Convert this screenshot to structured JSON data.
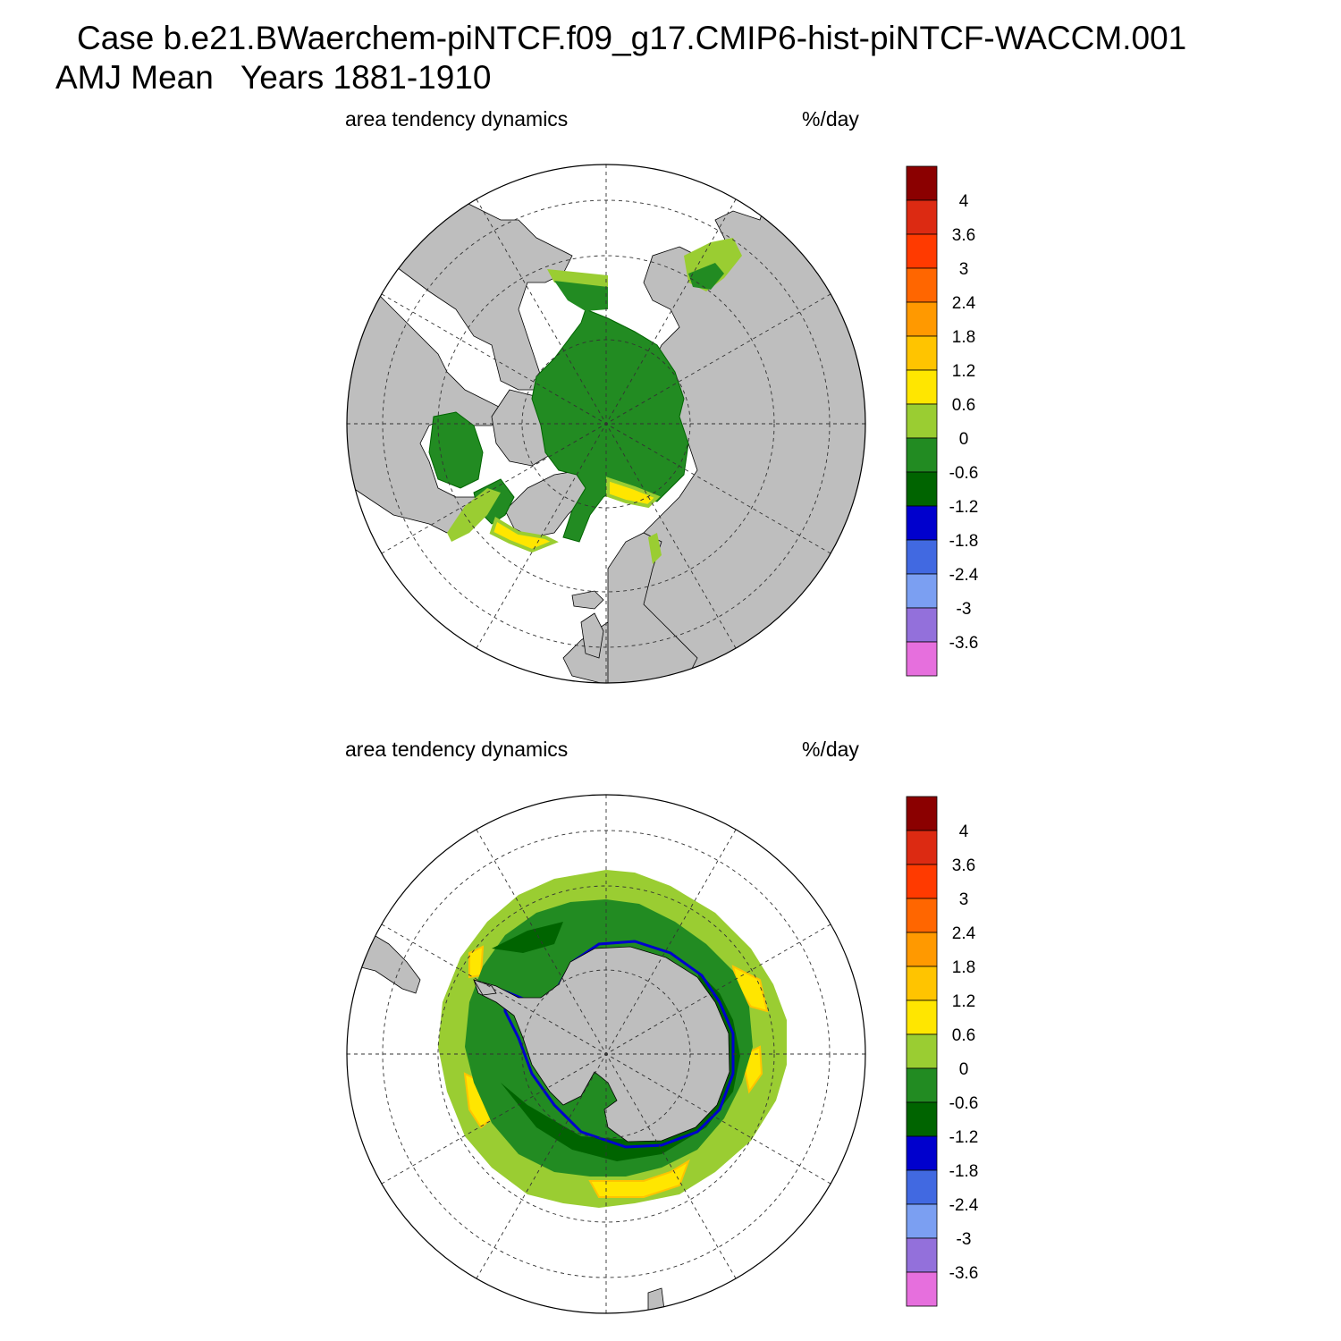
{
  "title": {
    "line1": "Case b.e21.BWaerchem-piNTCF.f09_g17.CMIP6-hist-piNTCF-WACCM.001",
    "line2": "AMJ Mean   Years 1881-1910"
  },
  "colorbar": {
    "labels": [
      "4",
      "3.6",
      "3",
      "2.4",
      "1.8",
      "1.2",
      "0.6",
      "0",
      "-0.6",
      "-1.2",
      "-1.8",
      "-2.4",
      "-3",
      "-3.6"
    ],
    "colors": [
      "#8B0000",
      "#DC2A12",
      "#FF3A00",
      "#FF6600",
      "#FF9900",
      "#FFC400",
      "#FFE600",
      "#9ACD32",
      "#228B22",
      "#006400",
      "#0000CD",
      "#4169E1",
      "#7B9FF2",
      "#9370DB",
      "#E66FDD"
    ]
  },
  "panels": [
    {
      "id": "north",
      "hemisphere": "Northern Hemisphere polar stereographic",
      "left_label": "area tendency dynamics",
      "right_label": "%/day",
      "land_color": "#BEBEBE"
    },
    {
      "id": "south",
      "hemisphere": "Southern Hemisphere polar stereographic",
      "left_label": "area tendency dynamics",
      "right_label": "%/day",
      "land_color": "#BEBEBE"
    }
  ]
}
